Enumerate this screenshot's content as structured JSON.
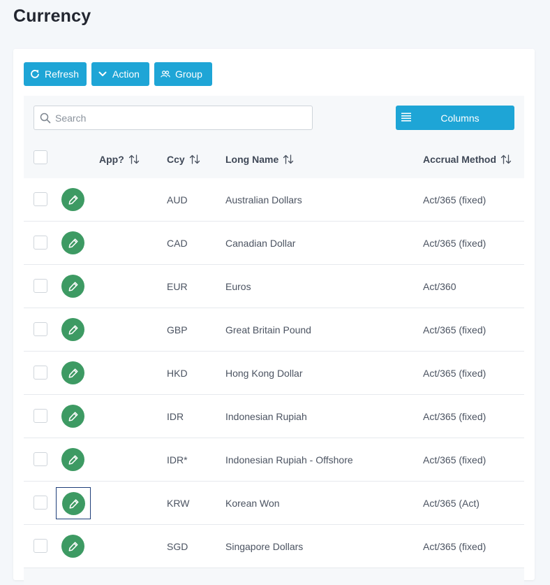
{
  "page": {
    "title": "Currency"
  },
  "toolbar": {
    "refresh_label": "Refresh",
    "action_label": "Action",
    "group_label": "Group"
  },
  "search": {
    "placeholder": "Search",
    "value": ""
  },
  "columns_button": {
    "label": "Columns"
  },
  "table": {
    "headers": {
      "app": "App?",
      "ccy": "Ccy",
      "long_name": "Long Name",
      "accrual_method": "Accrual Method"
    },
    "rows": [
      {
        "ccy": "AUD",
        "long_name": "Australian Dollars",
        "accrual_method": "Act/365 (fixed)"
      },
      {
        "ccy": "CAD",
        "long_name": "Canadian Dollar",
        "accrual_method": "Act/365 (fixed)"
      },
      {
        "ccy": "EUR",
        "long_name": "Euros",
        "accrual_method": "Act/360"
      },
      {
        "ccy": "GBP",
        "long_name": "Great Britain Pound",
        "accrual_method": "Act/365 (fixed)"
      },
      {
        "ccy": "HKD",
        "long_name": "Hong Kong Dollar",
        "accrual_method": "Act/365 (fixed)"
      },
      {
        "ccy": "IDR",
        "long_name": "Indonesian Rupiah",
        "accrual_method": "Act/365 (fixed)"
      },
      {
        "ccy": "IDR*",
        "long_name": "Indonesian Rupiah - Offshore",
        "accrual_method": "Act/365 (fixed)"
      },
      {
        "ccy": "KRW",
        "long_name": "Korean Won",
        "accrual_method": "Act/365 (Act)"
      },
      {
        "ccy": "SGD",
        "long_name": "Singapore Dollars",
        "accrual_method": "Act/365 (fixed)"
      }
    ]
  },
  "icons": {
    "refresh": "refresh-icon",
    "action": "chevron-down-icon",
    "group": "group-icon",
    "search": "search-icon",
    "columns": "list-icon",
    "sort": "sort-icon",
    "edit": "pencil-icon"
  },
  "colors": {
    "accent": "#1ea5d6",
    "edit_button": "#3d9a63",
    "focus_ring": "#1f3f7a"
  }
}
